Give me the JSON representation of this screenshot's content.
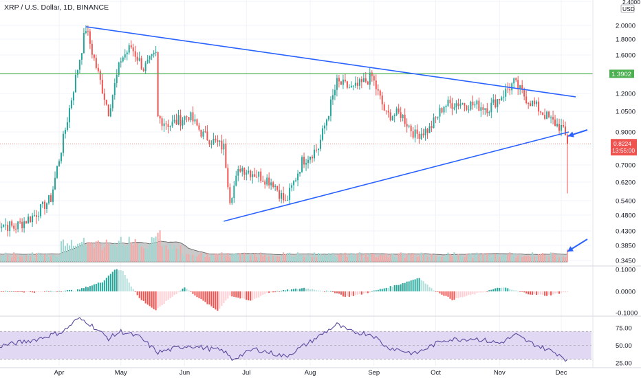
{
  "header": {
    "title": "XRP / U.S. Dollar, 1D, BINANCE"
  },
  "colors": {
    "up": "#26a69a",
    "down": "#ef5350",
    "trendline": "#2962ff",
    "level": "#4caf50",
    "volume_area": "#9e9e9e",
    "rsi_line": "#5b4a9e",
    "rsi_band": "#e1d8f3",
    "macd_up_strong": "#26a69a",
    "macd_up_weak": "#b2dfdb",
    "macd_down_strong": "#ef5350",
    "macd_down_weak": "#ffcdd2"
  },
  "chart_data": {
    "type": "candlestick",
    "symbol": "XRP / U.S. Dollar",
    "interval": "1D",
    "exchange": "BINANCE",
    "price_scale": "log",
    "price_axis": {
      "unit_label": "USD",
      "ticks": [
        "2.4000",
        "2.0000",
        "1.8000",
        "1.6000",
        "1.2000",
        "1.0500",
        "0.9000",
        "0.7000",
        "0.6200",
        "0.5400",
        "0.4800",
        "0.4300",
        "0.3850",
        "0.3450"
      ],
      "top_tick": "2.4000"
    },
    "x_axis_months": [
      "Apr",
      "May",
      "Jun",
      "Jul",
      "Aug",
      "Sep",
      "Oct",
      "Nov",
      "Dec"
    ],
    "price_path": [
      [
        "Mar 1",
        0.46
      ],
      [
        "Mar 10",
        0.44
      ],
      [
        "Mar 20",
        0.48
      ],
      [
        "Mar 28",
        0.55
      ],
      [
        "Apr 3",
        0.85
      ],
      [
        "Apr 8",
        1.25
      ],
      [
        "Apr 14",
        1.96
      ],
      [
        "Apr 18",
        1.55
      ],
      [
        "Apr 25",
        1.05
      ],
      [
        "May 1",
        1.55
      ],
      [
        "May 6",
        1.7
      ],
      [
        "May 12",
        1.45
      ],
      [
        "May 18",
        1.6
      ],
      [
        "May 19",
        1.0
      ],
      [
        "May 25",
        0.95
      ],
      [
        "Jun 3",
        1.02
      ],
      [
        "Jun 10",
        0.88
      ],
      [
        "Jun 20",
        0.8
      ],
      [
        "Jun 23",
        0.55
      ],
      [
        "Jun 28",
        0.69
      ],
      [
        "Jul 5",
        0.66
      ],
      [
        "Jul 14",
        0.62
      ],
      [
        "Jul 20",
        0.53
      ],
      [
        "Jul 28",
        0.72
      ],
      [
        "Aug 5",
        0.8
      ],
      [
        "Aug 10",
        1.05
      ],
      [
        "Aug 14",
        1.3
      ],
      [
        "Aug 22",
        1.24
      ],
      [
        "Aug 31",
        1.36
      ],
      [
        "Sep 3",
        1.2
      ],
      [
        "Sep 7",
        1.02
      ],
      [
        "Sep 14",
        1.03
      ],
      [
        "Sep 21",
        0.88
      ],
      [
        "Sep 28",
        0.92
      ],
      [
        "Oct 5",
        1.1
      ],
      [
        "Oct 12",
        1.12
      ],
      [
        "Oct 20",
        1.1
      ],
      [
        "Oct 27",
        1.08
      ],
      [
        "Nov 3",
        1.2
      ],
      [
        "Nov 8",
        1.3
      ],
      [
        "Nov 14",
        1.16
      ],
      [
        "Nov 20",
        1.07
      ],
      [
        "Nov 26",
        0.98
      ],
      [
        "Dec 1",
        0.93
      ],
      [
        "Dec 3",
        0.87
      ],
      [
        "Dec 4",
        0.8224
      ]
    ],
    "last_candle": {
      "low": 0.57
    },
    "annotations": {
      "horizontal_level": {
        "price": 1.3902,
        "label": "1.3902"
      },
      "descending_trendline": {
        "from": [
          "Apr 14",
          1.98
        ],
        "to": [
          "Dec 8",
          1.17
        ]
      },
      "ascending_trendline": {
        "from": [
          "Jun 20",
          0.46
        ],
        "to": [
          "Dec 4",
          0.9
        ]
      },
      "current_price": {
        "price": 0.8224,
        "label": "0.8224",
        "countdown": "13:55:00"
      },
      "arrows": [
        "near trendline break",
        "at volume spike"
      ]
    },
    "volume": {
      "spike_on_last_candle": true
    },
    "macd_panel": {
      "ticks": [
        "0.1000",
        "0.0000",
        "-0.1000"
      ]
    },
    "rsi_panel": {
      "ticks": [
        "75.00",
        "50.00",
        "25.00"
      ],
      "band": [
        30,
        70
      ],
      "path": [
        [
          "Mar 1",
          48
        ],
        [
          "Mar 20",
          58
        ],
        [
          "Apr 3",
          70
        ],
        [
          "Apr 10",
          88
        ],
        [
          "Apr 14",
          85
        ],
        [
          "Apr 25",
          60
        ],
        [
          "May 1",
          70
        ],
        [
          "May 10",
          62
        ],
        [
          "May 19",
          40
        ],
        [
          "Jun 3",
          50
        ],
        [
          "Jun 20",
          42
        ],
        [
          "Jun 24",
          30
        ],
        [
          "Jul 5",
          45
        ],
        [
          "Jul 20",
          34
        ],
        [
          "Aug 1",
          55
        ],
        [
          "Aug 14",
          80
        ],
        [
          "Aug 20",
          70
        ],
        [
          "Aug 31",
          66
        ],
        [
          "Sep 7",
          48
        ],
        [
          "Sep 21",
          38
        ],
        [
          "Oct 5",
          58
        ],
        [
          "Oct 20",
          60
        ],
        [
          "Nov 1",
          53
        ],
        [
          "Nov 9",
          65
        ],
        [
          "Nov 15",
          55
        ],
        [
          "Nov 26",
          42
        ],
        [
          "Dec 1",
          36
        ],
        [
          "Dec 4",
          28
        ]
      ]
    }
  }
}
